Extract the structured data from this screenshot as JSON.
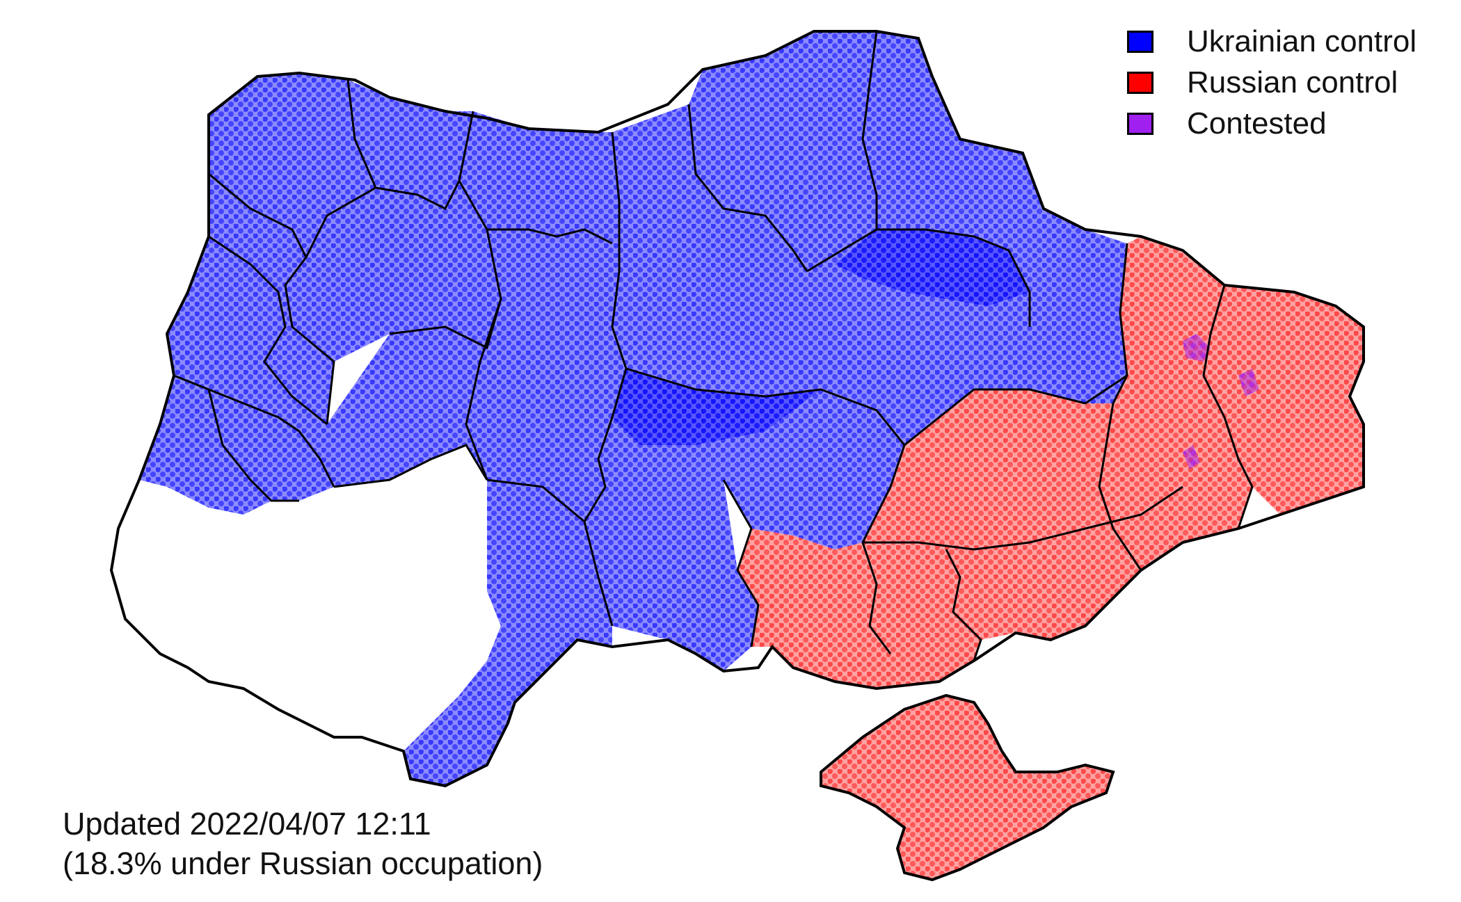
{
  "legend": {
    "items": [
      {
        "label": "Ukrainian control",
        "color": "#0000ff"
      },
      {
        "label": "Russian control",
        "color": "#ff0000"
      },
      {
        "label": "Contested",
        "color": "#a020f0"
      }
    ]
  },
  "footer": {
    "updated": "Updated 2022/04/07 12:11",
    "occupation": "(18.3% under Russian occupation)"
  },
  "map": {
    "colors": {
      "ukrainian": "#0000ff",
      "russian": "#ff0000",
      "contested": "#a020f0",
      "border": "#000000"
    },
    "regions": [
      {
        "id": "volyn",
        "control": "ukrainian"
      },
      {
        "id": "rivne",
        "control": "ukrainian"
      },
      {
        "id": "zhytomyr",
        "control": "ukrainian"
      },
      {
        "id": "kyiv",
        "control": "ukrainian"
      },
      {
        "id": "chernihiv",
        "control": "ukrainian"
      },
      {
        "id": "sumy",
        "control": "ukrainian"
      },
      {
        "id": "kharkiv",
        "control": "ukrainian"
      },
      {
        "id": "luhansk",
        "control": "russian"
      },
      {
        "id": "donetsk",
        "control": "russian"
      },
      {
        "id": "zaporizhzhia",
        "control": "russian"
      },
      {
        "id": "kherson",
        "control": "russian"
      },
      {
        "id": "crimea",
        "control": "russian"
      },
      {
        "id": "mykolaiv",
        "control": "ukrainian"
      },
      {
        "id": "odesa",
        "control": "ukrainian"
      },
      {
        "id": "dnipropetrovsk",
        "control": "ukrainian"
      },
      {
        "id": "poltava",
        "control": "ukrainian"
      },
      {
        "id": "cherkasy",
        "control": "ukrainian"
      },
      {
        "id": "kirovohrad",
        "control": "ukrainian"
      },
      {
        "id": "vinnytsia",
        "control": "ukrainian"
      },
      {
        "id": "khmelnytskyi",
        "control": "ukrainian"
      },
      {
        "id": "ternopil",
        "control": "ukrainian"
      },
      {
        "id": "lviv",
        "control": "ukrainian"
      },
      {
        "id": "ivano-frankivsk",
        "control": "ukrainian"
      },
      {
        "id": "zakarpattia",
        "control": "ukrainian"
      },
      {
        "id": "chernivtsi",
        "control": "ukrainian"
      }
    ]
  }
}
